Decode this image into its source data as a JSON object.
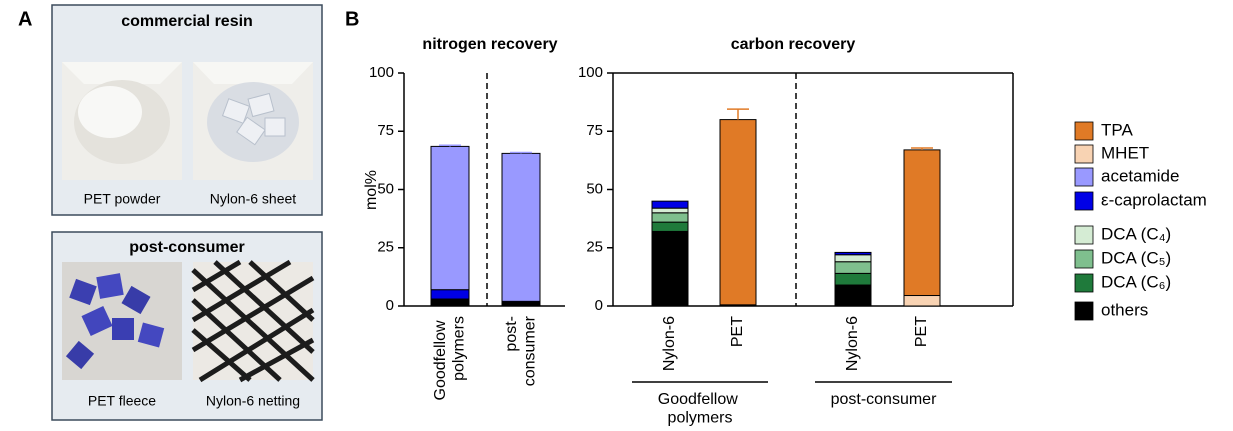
{
  "panel_a": {
    "label": "A",
    "boxes": [
      {
        "title": "commercial resin",
        "items": [
          "PET powder",
          "Nylon-6 sheet"
        ]
      },
      {
        "title": "post-consumer",
        "items": [
          "PET fleece",
          "Nylon-6 netting"
        ]
      }
    ]
  },
  "panel_b_label": "B",
  "chart_data": [
    {
      "type": "bar",
      "stacked": true,
      "title": "nitrogen recovery",
      "y_label": "mol%",
      "categories": [
        "Goodfellow polymers",
        "post-consumer"
      ],
      "ylim": [
        0,
        100
      ],
      "yticks": [
        0,
        25,
        50,
        75,
        100
      ],
      "series": [
        {
          "name": "others",
          "color": "#000000",
          "values": [
            3,
            1.5
          ]
        },
        {
          "name": "ε-caprolactam",
          "color": "#0000e6",
          "values": [
            4,
            0.5
          ]
        },
        {
          "name": "acetamide",
          "color": "#9999ff",
          "values": [
            61.5,
            63.5
          ],
          "errors": [
            0.5,
            0.4
          ]
        }
      ]
    },
    {
      "type": "bar",
      "stacked": true,
      "title": "carbon recovery",
      "categories": [
        "Nylon-6",
        "PET",
        "Nylon-6",
        "PET"
      ],
      "groups": [
        "Goodfellow polymers",
        "post-consumer"
      ],
      "ylim": [
        0,
        100
      ],
      "yticks": [
        0,
        25,
        50,
        75,
        100
      ],
      "series": [
        {
          "name": "others",
          "color": "#000000",
          "values": [
            32,
            0.5,
            9,
            null
          ]
        },
        {
          "name": "DCA (C₆)",
          "color": "#1f7a3b",
          "values": [
            4,
            null,
            5,
            null
          ]
        },
        {
          "name": "DCA (C₅)",
          "color": "#7fbf8e",
          "values": [
            4,
            null,
            5,
            null
          ]
        },
        {
          "name": "DCA (C₄)",
          "color": "#d5ecd4",
          "values": [
            2,
            null,
            3,
            null
          ]
        },
        {
          "name": "ε-caprolactam",
          "color": "#0000e6",
          "values": [
            3,
            null,
            1,
            null
          ]
        },
        {
          "name": "MHET",
          "color": "#f8d3b3",
          "values": [
            null,
            null,
            null,
            4.5
          ]
        },
        {
          "name": "TPA",
          "color": "#e07a26",
          "values": [
            null,
            79.5,
            null,
            62.5
          ],
          "errors": [
            null,
            4.5,
            null,
            0.8
          ]
        }
      ]
    }
  ]
}
